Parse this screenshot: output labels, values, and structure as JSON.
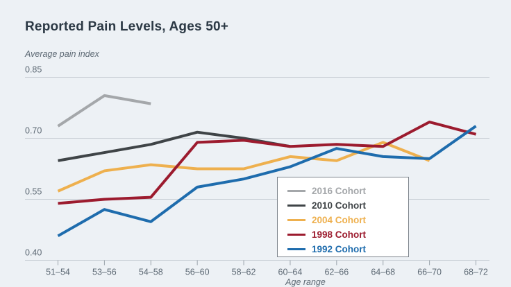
{
  "page": {
    "background_color": "#edf1f5",
    "title_color": "#2c3945",
    "axis_text_color": "#5d6974",
    "gridline_color": "#c8ced5",
    "tick_mark_color": "#9aa3ab",
    "legend_border_color": "#7d848c",
    "legend_background": "#ffffff"
  },
  "chart_data": {
    "type": "line",
    "title": "Reported Pain Levels, Ages 50+",
    "ylabel": "Average pain index",
    "xlabel": "Age range",
    "categories": [
      "51–54",
      "53–56",
      "54–58",
      "56–60",
      "58–62",
      "60–64",
      "62–66",
      "64–68",
      "66–70",
      "68–72"
    ],
    "ylim": [
      0.4,
      0.85
    ],
    "yticks": [
      0.4,
      0.55,
      0.7,
      0.85
    ],
    "ytick_labels": [
      "0.40",
      "0.55",
      "0.70",
      "0.85"
    ],
    "grid": "horizontal-only",
    "legend_position": "inside-lower-right",
    "series": [
      {
        "name": "2016 Cohort",
        "color": "#a4a7aa",
        "values": [
          0.73,
          0.805,
          0.785,
          null,
          null,
          null,
          null,
          null,
          null,
          null
        ]
      },
      {
        "name": "2010 Cohort",
        "color": "#3f4447",
        "values": [
          0.645,
          0.665,
          0.685,
          0.715,
          0.7,
          0.68,
          null,
          null,
          null,
          null
        ]
      },
      {
        "name": "2004 Cohort",
        "color": "#eeb04e",
        "values": [
          0.57,
          0.62,
          0.635,
          0.625,
          0.625,
          0.655,
          0.645,
          0.69,
          0.645,
          null
        ]
      },
      {
        "name": "1998 Cohort",
        "color": "#9c1b2e",
        "values": [
          0.54,
          0.55,
          0.555,
          0.69,
          0.695,
          0.68,
          0.685,
          0.68,
          0.74,
          0.71
        ]
      },
      {
        "name": "1992 Cohort",
        "color": "#1e6cad",
        "values": [
          0.46,
          0.525,
          0.495,
          0.58,
          0.6,
          0.63,
          0.675,
          0.655,
          0.65,
          0.73
        ]
      }
    ]
  }
}
